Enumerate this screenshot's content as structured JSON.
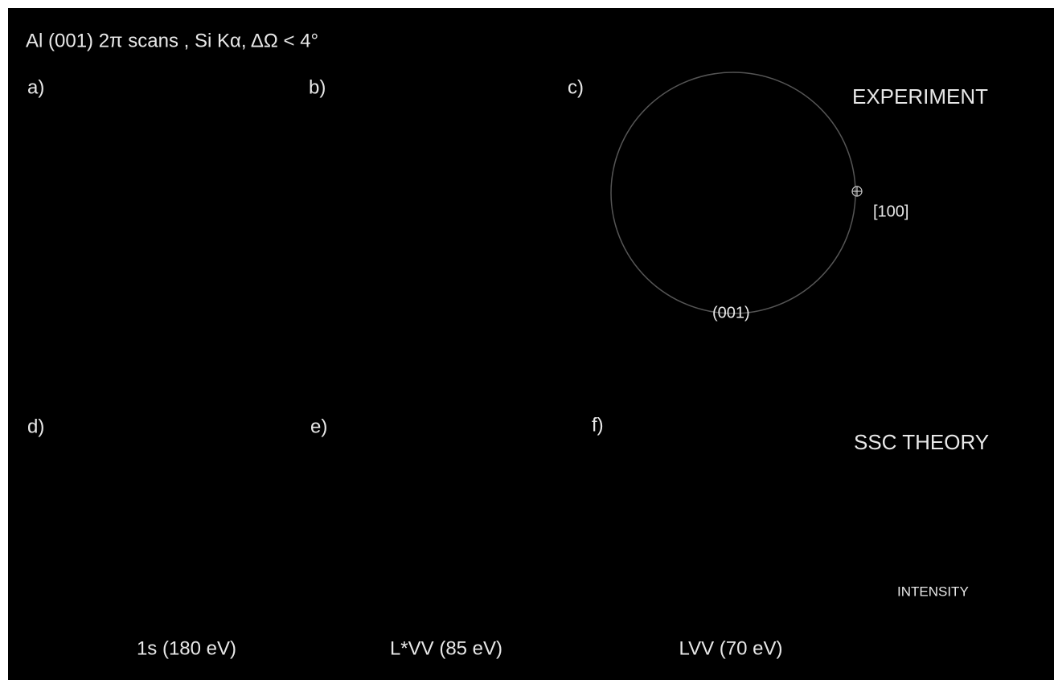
{
  "title": "Al (001) 2π scans  , Si Kα, ΔΩ < 4°",
  "panels": {
    "a": "a)",
    "b": "b)",
    "c": "c)",
    "d": "d)",
    "e": "e)",
    "f": "f)"
  },
  "row_labels": {
    "top": "EXPERIMENT",
    "bottom": "SSC THEORY"
  },
  "annotations": {
    "direction_100": "[100]",
    "direction_001": "(001)",
    "scale": "INTENSITY"
  },
  "columns": [
    "1s (180 eV)",
    "L*VV (85 eV)",
    "LVV (70 eV)"
  ]
}
